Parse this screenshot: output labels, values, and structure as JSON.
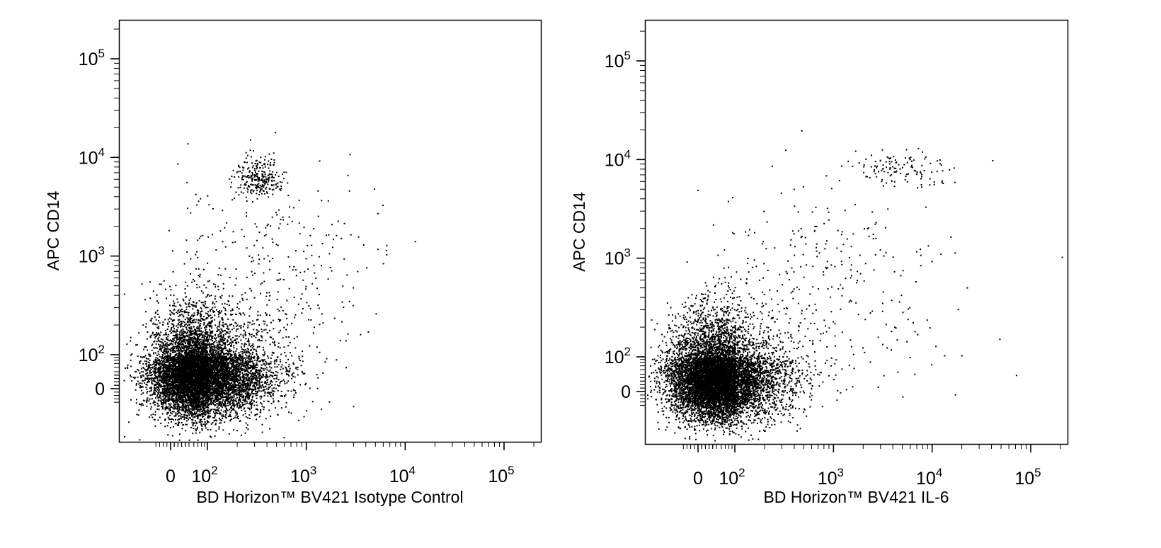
{
  "chart_data": [
    {
      "type": "scatter",
      "scale": "biexponential",
      "xlabel": "BD Horizon™ BV421 Isotype Control",
      "ylabel": "APC CD14",
      "x_ticks": [
        {
          "value": 0,
          "base": "0",
          "exp": ""
        },
        {
          "value": 100,
          "base": "10",
          "exp": "2"
        },
        {
          "value": 1000,
          "base": "10",
          "exp": "3"
        },
        {
          "value": 10000,
          "base": "10",
          "exp": "4"
        },
        {
          "value": 100000,
          "base": "10",
          "exp": "5"
        }
      ],
      "y_ticks": [
        {
          "value": 0,
          "base": "0",
          "exp": ""
        },
        {
          "value": 100,
          "base": "10",
          "exp": "2"
        },
        {
          "value": 1000,
          "base": "10",
          "exp": "3"
        },
        {
          "value": 10000,
          "base": "10",
          "exp": "4"
        },
        {
          "value": 100000,
          "base": "10",
          "exp": "5"
        }
      ],
      "populations": [
        {
          "name": "",
          "x_center": 70,
          "y_center": 45,
          "x_spread_log": 0.32,
          "y_spread_log": 0.3,
          "count": 9000
        },
        {
          "name": "",
          "x_center": 320,
          "y_center": 6200,
          "x_spread_log": 0.12,
          "y_spread_log": 0.1,
          "count": 260
        },
        {
          "name": "",
          "x_center": 450,
          "y_center": 700,
          "x_spread_log": 0.55,
          "y_spread_log": 0.55,
          "count": 330
        }
      ]
    },
    {
      "type": "scatter",
      "scale": "biexponential",
      "xlabel": "BD Horizon™ BV421 IL-6",
      "ylabel": "APC CD14",
      "x_ticks": [
        {
          "value": 0,
          "base": "0",
          "exp": ""
        },
        {
          "value": 100,
          "base": "10",
          "exp": "2"
        },
        {
          "value": 1000,
          "base": "10",
          "exp": "3"
        },
        {
          "value": 10000,
          "base": "10",
          "exp": "4"
        },
        {
          "value": 100000,
          "base": "10",
          "exp": "5"
        }
      ],
      "y_ticks": [
        {
          "value": 0,
          "base": "0",
          "exp": ""
        },
        {
          "value": 100,
          "base": "10",
          "exp": "2"
        },
        {
          "value": 1000,
          "base": "10",
          "exp": "3"
        },
        {
          "value": 10000,
          "base": "10",
          "exp": "4"
        },
        {
          "value": 100000,
          "base": "10",
          "exp": "5"
        }
      ],
      "populations": [
        {
          "name": "",
          "x_center": 50,
          "y_center": 40,
          "x_spread_log": 0.32,
          "y_spread_log": 0.3,
          "count": 9000
        },
        {
          "name": "",
          "x_center": 5000,
          "y_center": 8500,
          "x_spread_log": 0.28,
          "y_spread_log": 0.08,
          "count": 120
        },
        {
          "name": "",
          "x_center": 800,
          "y_center": 500,
          "x_spread_log": 0.6,
          "y_spread_log": 0.55,
          "count": 320
        }
      ]
    }
  ],
  "colors": {
    "dot": "#000000",
    "axis": "#000000",
    "background": "#ffffff"
  }
}
